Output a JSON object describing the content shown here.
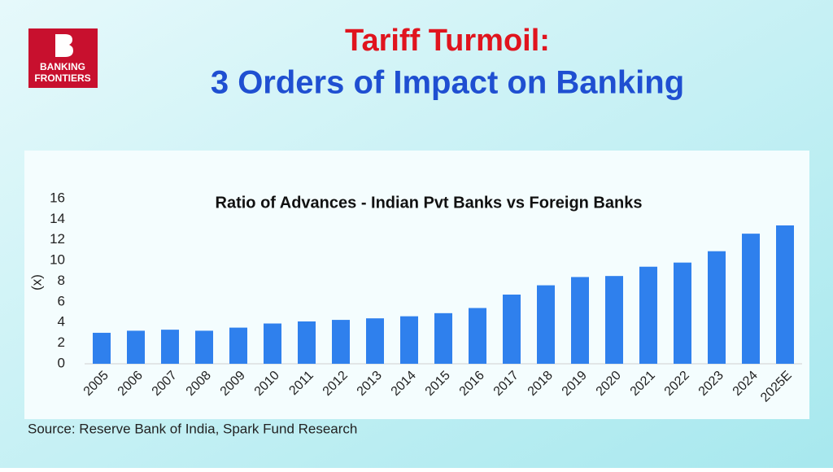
{
  "logo": {
    "line1": "BANKING",
    "line2": "FRONTIERS"
  },
  "header": {
    "title": "Tariff Turmoil:",
    "subtitle": "3 Orders of Impact on Banking"
  },
  "chart_data": {
    "type": "bar",
    "title": "Ratio of Advances - Indian Pvt Banks vs Foreign Banks",
    "y_label": "(x)",
    "categories": [
      "2005",
      "2006",
      "2007",
      "2008",
      "2009",
      "2010",
      "2011",
      "2012",
      "2013",
      "2014",
      "2015",
      "2016",
      "2017",
      "2018",
      "2019",
      "2020",
      "2021",
      "2022",
      "2023",
      "2024",
      "2025E"
    ],
    "values": [
      3.0,
      3.2,
      3.3,
      3.2,
      3.5,
      3.9,
      4.1,
      4.25,
      4.4,
      4.6,
      4.9,
      5.4,
      6.7,
      7.6,
      8.4,
      8.5,
      9.4,
      9.8,
      10.9,
      12.6,
      13.4
    ],
    "color": "#2f80ed",
    "ylim": [
      0,
      16
    ],
    "yticks": [
      0,
      2,
      4,
      6,
      8,
      10,
      12,
      14,
      16
    ],
    "grid": false
  },
  "source": "Source: Reserve Bank of India, Spark Fund Research"
}
